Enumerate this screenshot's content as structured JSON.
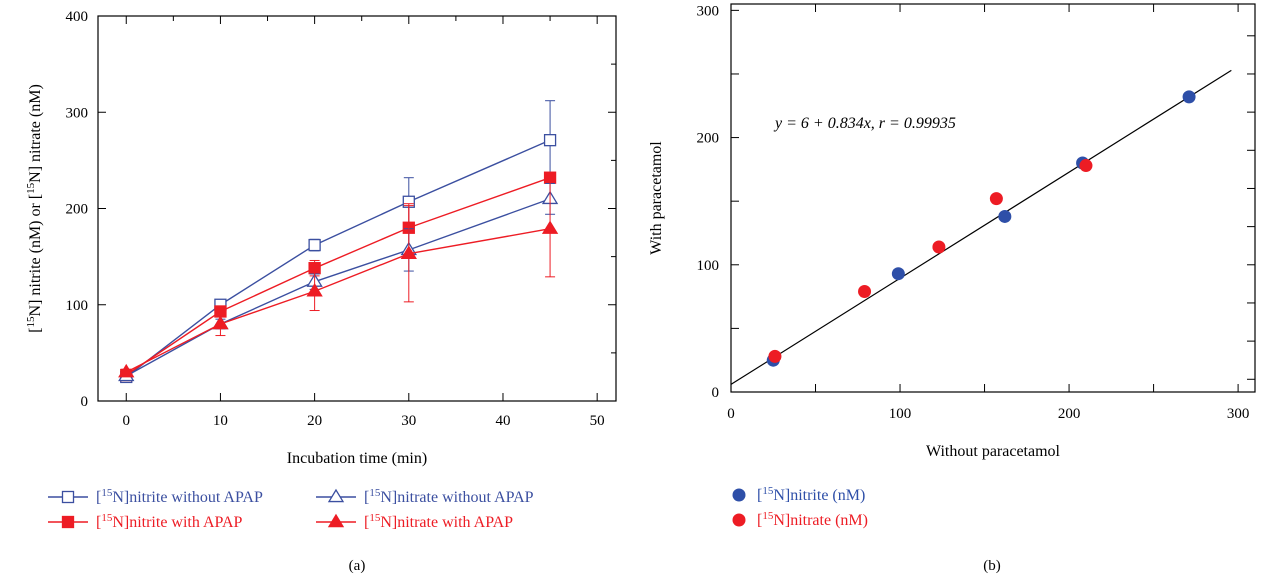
{
  "chart_data": [
    {
      "panel": "(a)",
      "type": "line",
      "xlabel": "Incubation time (min)",
      "ylabel_parts": [
        "[",
        "15",
        "N] nitrite (nM) or [",
        "15",
        "N] nitrate (nM)"
      ],
      "xlim": [
        -3,
        52
      ],
      "ylim": [
        0,
        400
      ],
      "xticks": [
        0,
        10,
        20,
        30,
        40,
        50
      ],
      "yticks": [
        0,
        100,
        200,
        300,
        400
      ],
      "x": [
        0,
        10,
        20,
        30,
        45
      ],
      "series": [
        {
          "key": "nitrite_without",
          "name_parts": [
            "[",
            "15",
            "N]nitrite without APAP"
          ],
          "color": "#3b4fa0",
          "marker": "square-open",
          "values": [
            25,
            100,
            162,
            207,
            271
          ],
          "err": [
            3,
            5,
            6,
            25,
            41
          ]
        },
        {
          "key": "nitrite_with",
          "name_parts": [
            "[",
            "15",
            "N]nitrite with APAP"
          ],
          "color": "#ed1c24",
          "marker": "square-filled",
          "values": [
            27,
            93,
            138,
            180,
            232
          ],
          "err": [
            3,
            5,
            8,
            25,
            0
          ]
        },
        {
          "key": "nitrate_without",
          "name_parts": [
            "[",
            "15",
            "N]nitrate without APAP"
          ],
          "color": "#3b4fa0",
          "marker": "triangle-open",
          "values": [
            26,
            80,
            124,
            157,
            210
          ],
          "err": [
            3,
            5,
            8,
            22,
            16
          ]
        },
        {
          "key": "nitrate_with",
          "name_parts": [
            "[",
            "15",
            "N]nitrate with APAP"
          ],
          "color": "#ed1c24",
          "marker": "triangle-filled",
          "values": [
            30,
            80,
            114,
            153,
            179
          ],
          "err": [
            3,
            12,
            20,
            50,
            50
          ]
        }
      ]
    },
    {
      "panel": "(b)",
      "type": "scatter",
      "xlabel": "Without paracetamol",
      "ylabel": "With paracetamol",
      "xlim": [
        0,
        310
      ],
      "ylim": [
        0,
        305
      ],
      "xticks": [
        0,
        100,
        200,
        300
      ],
      "yticks": [
        0,
        100,
        200,
        300
      ],
      "equation": "y = 6 + 0.834x,  r = 0.99935",
      "fit": {
        "intercept": 6,
        "slope": 0.834,
        "x_range": [
          0,
          296
        ]
      },
      "series": [
        {
          "key": "nitrite",
          "name_parts": [
            "[",
            "15",
            "N]nitrite (nM)"
          ],
          "color": "#2e4fa8",
          "points": [
            [
              25,
              25
            ],
            [
              99,
              93
            ],
            [
              162,
              138
            ],
            [
              208,
              180
            ],
            [
              271,
              232
            ]
          ]
        },
        {
          "key": "nitrate",
          "name_parts": [
            "[",
            "15",
            "N]nitrate (nM)"
          ],
          "color": "#ed1c24",
          "points": [
            [
              26,
              28
            ],
            [
              79,
              79
            ],
            [
              123,
              114
            ],
            [
              157,
              152
            ],
            [
              210,
              178
            ]
          ]
        }
      ]
    }
  ]
}
